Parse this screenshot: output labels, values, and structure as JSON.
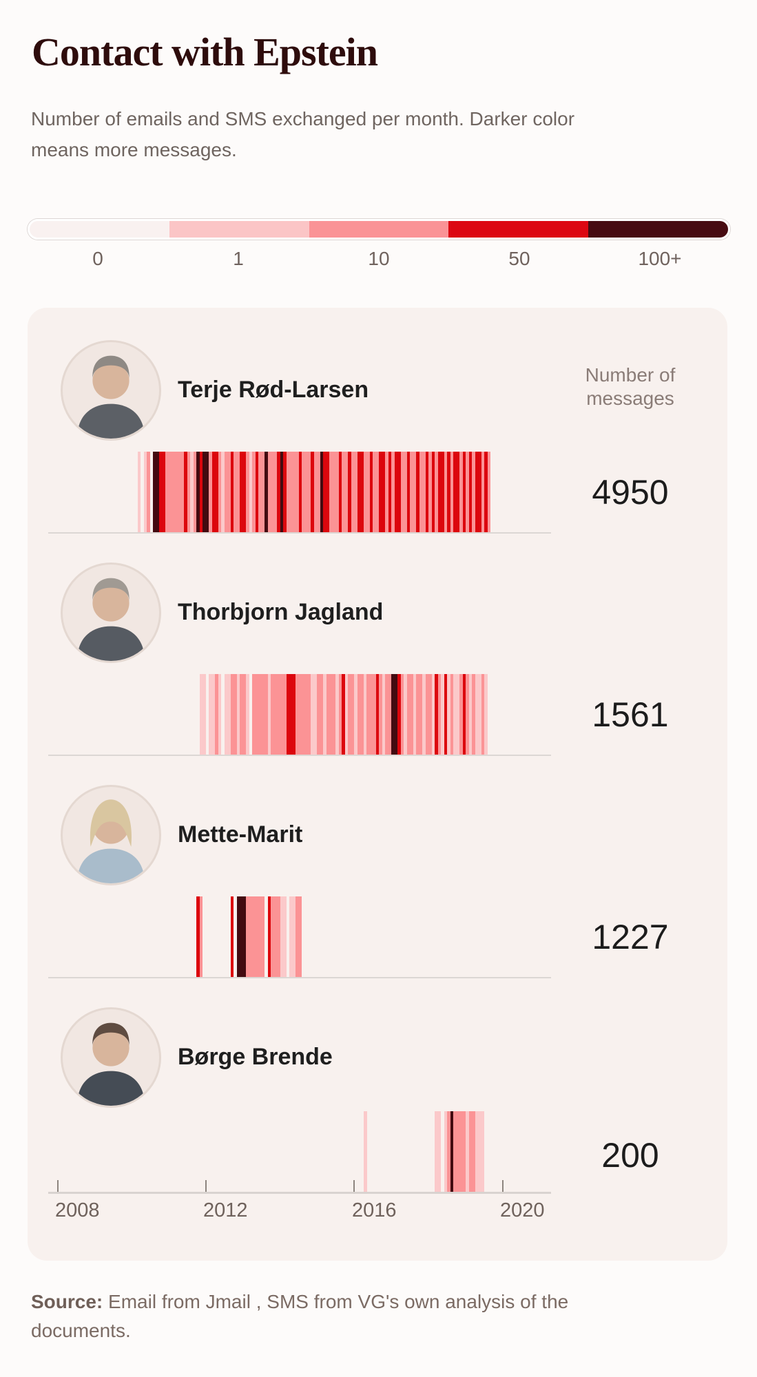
{
  "header": {
    "title": "Contact with Epstein",
    "subtitle": "Number of emails and SMS exchanged per month. Darker color means more messages."
  },
  "card": {
    "messages_label": "Number of messages"
  },
  "source": {
    "label": "Source:",
    "text": " Email from Jmail , SMS from VG's own analysis of the documents."
  },
  "chart_data": {
    "type": "heatmap",
    "title": "Contact with Epstein",
    "unit": "messages exchanged per month",
    "legend_position": "top",
    "color_buckets": {
      "labels": [
        "0",
        "1",
        "10",
        "50",
        "100+"
      ],
      "colors": [
        "#f9f1f0",
        "#fbc5c6",
        "#fa9396",
        "#dc0712",
        "#470b12"
      ]
    },
    "stripe_colors": {
      "1": "#fbc9ca",
      "2": "#fb9395",
      "3": "#dc060d",
      "4": "#430a10"
    },
    "x_axis": {
      "start_year": 2008,
      "months_span": 160,
      "tick_labels": [
        "2008",
        "2012",
        "2016",
        "2020"
      ]
    },
    "series": [
      {
        "name": "Terje Rød-Larsen",
        "total": "4950",
        "start_month_index": 26,
        "levels": [
          "1012044332",
          "2222232124",
          "3442332122",
          "3223321232",
          "2422234322",
          "2232223224",
          "3322232232",
          "2332232233",
          "2323322322",
          "3223232332",
          "3233232323",
          "3232"
        ]
      },
      {
        "name": "Thorbjorn Jagland",
        "total": "1561",
        "start_month_index": 46,
        "levels": [
          "1101121011",
          "2212210222",
          "2212222233",
          "3222221122",
          "1222123122",
          "1221222321",
          "2244321221",
          "2212213213",
          "1211232121",
          "121"
        ]
      },
      {
        "name": "Mette-Marit",
        "total": "1227",
        "start_month_index": 45,
        "levels": [
          "32",
          "000000000",
          "30",
          "444",
          "222222",
          "03",
          "222",
          "110",
          "11",
          "22"
        ]
      },
      {
        "name": "Børge Brende",
        "total": "200",
        "start_month_index": 99,
        "levels": [
          "1",
          "0000000000",
          "000000000000",
          "1101242222",
          "122111"
        ]
      }
    ]
  }
}
